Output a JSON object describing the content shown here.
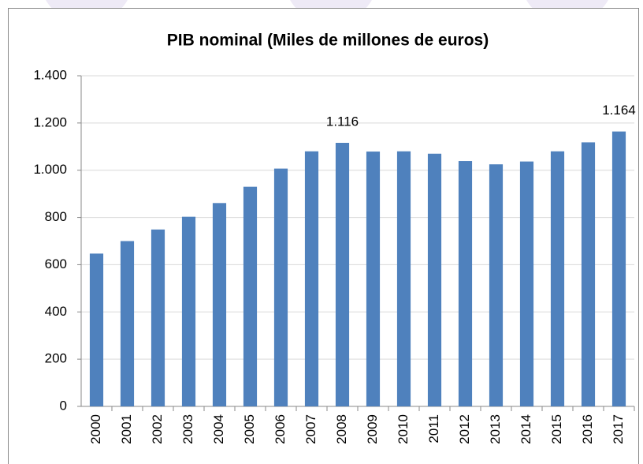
{
  "chart_data": {
    "type": "bar",
    "title": "PIB nominal (Miles de millones de euros)",
    "categories": [
      "2000",
      "2001",
      "2002",
      "2003",
      "2004",
      "2005",
      "2006",
      "2007",
      "2008",
      "2009",
      "2010",
      "2011",
      "2012",
      "2013",
      "2014",
      "2015",
      "2016",
      "2017"
    ],
    "values": [
      647,
      700,
      749,
      803,
      861,
      930,
      1007,
      1080,
      1116,
      1079,
      1080,
      1070,
      1039,
      1025,
      1037,
      1080,
      1118,
      1164
    ],
    "value_labels": [
      null,
      null,
      null,
      null,
      null,
      null,
      null,
      null,
      "1.116",
      null,
      null,
      null,
      null,
      null,
      null,
      null,
      null,
      "1.164"
    ],
    "color": "#4f81bd",
    "ylim": [
      0,
      1400
    ],
    "yticks": [
      0,
      200,
      400,
      600,
      800,
      {
        "value": 1000,
        "label": "1.000"
      },
      {
        "value": 1200,
        "label": "1.200"
      },
      {
        "value": 1400,
        "label": "1.400"
      }
    ],
    "grid": true
  }
}
